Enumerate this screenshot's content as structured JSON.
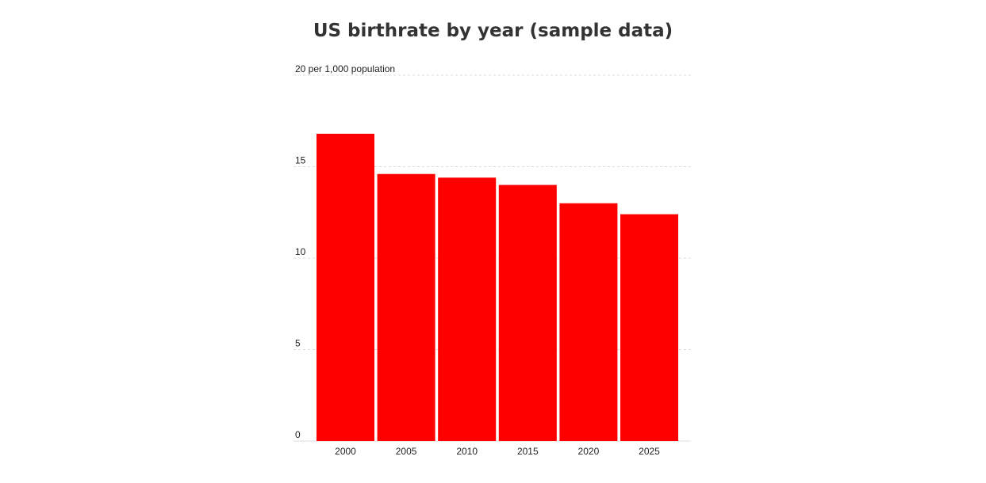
{
  "chart_data": {
    "type": "bar",
    "title": "US birthrate by year (sample data)",
    "categories": [
      "2000",
      "2005",
      "2010",
      "2015",
      "2020",
      "2025"
    ],
    "values": [
      16.8,
      14.6,
      14.4,
      14.0,
      13.0,
      12.4
    ],
    "ylim": [
      0,
      20
    ],
    "y_ticks": [
      0,
      5,
      10,
      15,
      20
    ],
    "y_tick_labels": [
      "0",
      "5",
      "10",
      "15",
      "20 per 1,000 population"
    ],
    "grid": true,
    "legend": "none",
    "colors": {
      "bar": "#ff0000",
      "grid": "#dddddd",
      "text": "#222222",
      "title": "#333333"
    }
  }
}
